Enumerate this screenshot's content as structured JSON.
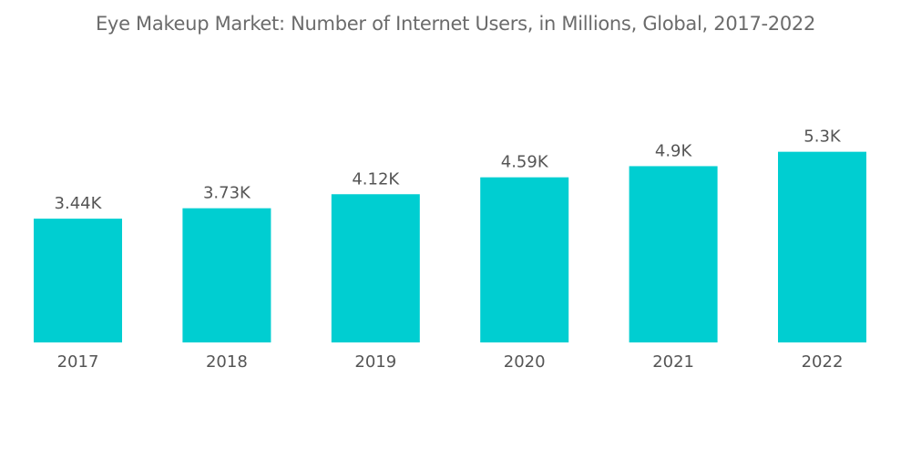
{
  "chart_data": {
    "type": "bar",
    "title": "Eye Makeup Market: Number of Internet Users, in Millions, Global, 2017-2022",
    "xlabel": "",
    "ylabel": "",
    "categories": [
      "2017",
      "2018",
      "2019",
      "2020",
      "2021",
      "2022"
    ],
    "values": [
      3.44,
      3.73,
      4.12,
      4.59,
      4.9,
      5.3
    ],
    "data_labels": [
      "3.44K",
      "3.73K",
      "4.12K",
      "4.59K",
      "4.9K",
      "5.3K"
    ],
    "ylim": [
      0,
      5.3
    ],
    "grid": false,
    "legend": "none",
    "colors": {
      "bar": "#00CED1"
    }
  }
}
